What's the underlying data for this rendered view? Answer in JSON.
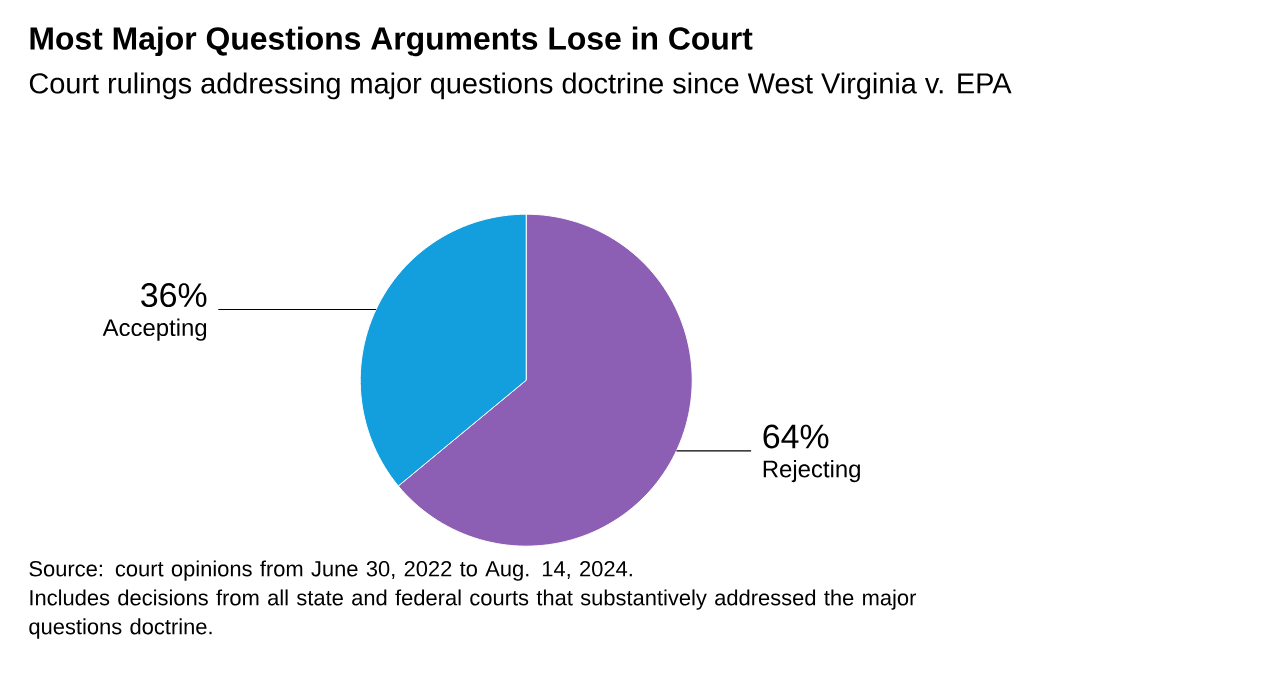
{
  "chart_data": {
    "type": "pie",
    "title": "Most Major Questions Arguments Lose in Court",
    "subtitle": "Court rulings addressing major questions doctrine since West Virginia v. EPA",
    "categories": [
      "Rejecting",
      "Accepting"
    ],
    "values": [
      64,
      36
    ],
    "colors": [
      "#8c5fb5",
      "#139edd"
    ],
    "value_labels": [
      "64%",
      "36%"
    ],
    "annotations": [
      "Source: court opinions from June 30, 2022 to Aug. 14, 2024.",
      "Includes decisions from all state and federal courts that substantively addressed the major questions doctrine."
    ]
  }
}
